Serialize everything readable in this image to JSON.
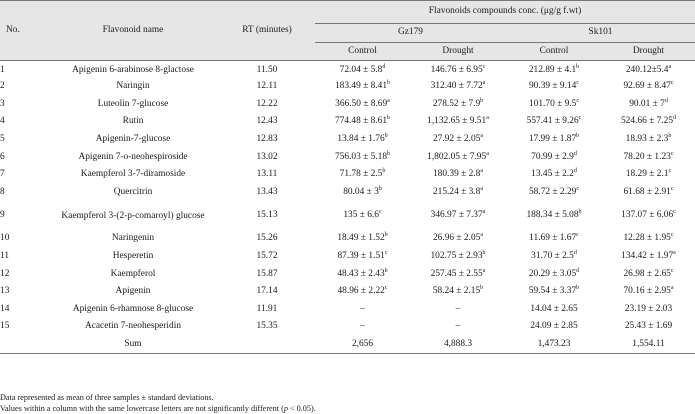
{
  "header": {
    "no": "No.",
    "name": "Flavonoid name",
    "rt": "RT (minutes)",
    "group": "Flavonoids compounds conc. (μg/g f.wt)",
    "gz": "Gz179",
    "sk": "Sk101",
    "control": "Control",
    "drought": "Drought"
  },
  "rows": [
    {
      "no": "1",
      "name": "Apigenin 6-arabinose 8-glactose",
      "rt": "11.50",
      "gz_c": "72.04 ± 5.8",
      "gz_c_s": "d",
      "gz_d": "146.76 ± 6.95",
      "gz_d_s": "c",
      "sk_c": "212.89 ± 4.1",
      "sk_c_s": "b",
      "sk_d": "240.12±5.4",
      "sk_d_s": "a"
    },
    {
      "no": "2",
      "name": "Naringin",
      "rt": "12.11",
      "gz_c": "183.49 ± 8.41",
      "gz_c_s": "b",
      "gz_d": "312.40 ± 7.72",
      "gz_d_s": "a",
      "sk_c": "90.39 ± 9.14",
      "sk_c_s": "c",
      "sk_d": "92.69 ± 8.47",
      "sk_d_s": "c"
    },
    {
      "no": "3",
      "name": "Luteolin 7-glucose",
      "rt": "12.22",
      "gz_c": "366.50 ± 8.69",
      "gz_c_s": "a",
      "gz_d": "278.52 ± 7.9",
      "gz_d_s": "b",
      "sk_c": "101.70 ± 9.5",
      "sk_c_s": "c",
      "sk_d": "90.01 ± 7",
      "sk_d_s": "d"
    },
    {
      "no": "4",
      "name": "Rutin",
      "rt": "12.43",
      "gz_c": "774.48 ± 8.61",
      "gz_c_s": "b",
      "gz_d": "1,132.65 ± 9.51",
      "gz_d_s": "a",
      "sk_c": "557.41 ± 9.26",
      "sk_c_s": "c",
      "sk_d": "524.66 ± 7.25",
      "sk_d_s": "d"
    },
    {
      "no": "5",
      "name": "Apigenin-7-glucose",
      "rt": "12.83",
      "gz_c": "13.84 ± 1.76",
      "gz_c_s": "b",
      "gz_d": "27.92 ± 2.05",
      "gz_d_s": "a",
      "sk_c": "17.99 ± 1.87",
      "sk_c_s": "b",
      "sk_d": "18.93 ± 2.3",
      "sk_d_s": "b"
    },
    {
      "no": "6",
      "name": "Apigenin 7-o-neohespiroside",
      "rt": "13.02",
      "gz_c": "756.03 ± 5.18",
      "gz_c_s": "b",
      "gz_d": "1,802.05 ± 7.95",
      "gz_d_s": "a",
      "sk_c": "70.99 ± 2.9",
      "sk_c_s": "d",
      "sk_d": "78.20 ± 1.23",
      "sk_d_s": "c"
    },
    {
      "no": "7",
      "name": "Kaempferol 3-7-diramoside",
      "rt": "13.11",
      "gz_c": "71.78 ± 2.5",
      "gz_c_s": "b",
      "gz_d": "180.39 ± 2.8",
      "gz_d_s": "a",
      "sk_c": "13.45 ± 2.2",
      "sk_c_s": "d",
      "sk_d": "18.29 ± 2.1",
      "sk_d_s": "c"
    },
    {
      "no": "8",
      "name": "Quercitrin",
      "rt": "13.43",
      "gz_c": "80.04 ± 3",
      "gz_c_s": "b",
      "gz_d": "215.24 ± 3.8",
      "gz_d_s": "a",
      "sk_c": "58.72 ± 2.29",
      "sk_c_s": "c",
      "sk_d": "61.68 ± 2.91",
      "sk_d_s": "c"
    },
    {
      "no": "9",
      "name": "Kaempferol 3-(2-p-comaroyl) glucose",
      "rt": "15.13",
      "gz_c": "135 ± 6.6",
      "gz_c_s": "c",
      "gz_d": "346.97 ± 7.37",
      "gz_d_s": "a",
      "sk_c": "188.34 ± 5.08",
      "sk_c_s": "b",
      "sk_d": "137.07 ± 6.06",
      "sk_d_s": "c",
      "tall": true
    },
    {
      "no": "10",
      "name": "Naringenin",
      "rt": "15.26",
      "gz_c": "18.49 ± 1.52",
      "gz_c_s": "b",
      "gz_d": "26.96 ± 2.05",
      "gz_d_s": "a",
      "sk_c": "11.69 ± 1.67",
      "sk_c_s": "c",
      "sk_d": "12.28 ± 1.95",
      "sk_d_s": "c"
    },
    {
      "no": "11",
      "name": "Hesperetin",
      "rt": "15.72",
      "gz_c": "87.39 ± 1.51",
      "gz_c_s": "c",
      "gz_d": "102.75 ± 2.93",
      "gz_d_s": "b",
      "sk_c": "31.70 ± 2.5",
      "sk_c_s": "d",
      "sk_d": "134.42 ± 1.97",
      "sk_d_s": "a"
    },
    {
      "no": "12",
      "name": "Kaempferol",
      "rt": "15.87",
      "gz_c": "48.43 ± 2.43",
      "gz_c_s": "b",
      "gz_d": "257.45 ± 2.55",
      "gz_d_s": "a",
      "sk_c": "20.29 ± 3.05",
      "sk_c_s": "d",
      "sk_d": "26.98 ± 2.65",
      "sk_d_s": "c"
    },
    {
      "no": "13",
      "name": "Apigenin",
      "rt": "17.14",
      "gz_c": "48.96 ± 2.22",
      "gz_c_s": "c",
      "gz_d": "58.24 ± 2.15",
      "gz_d_s": "b",
      "sk_c": "59.54 ± 3.37",
      "sk_c_s": "b",
      "sk_d": "70.16 ± 2.95",
      "sk_d_s": "a"
    },
    {
      "no": "14",
      "name": "Apigenin 6-rhamnose 8-glucose",
      "rt": "11.91",
      "gz_c": "–",
      "gz_c_s": "",
      "gz_d": "–",
      "gz_d_s": "",
      "sk_c": "14.04 ± 2.65",
      "sk_c_s": "",
      "sk_d": "23.19 ± 2.03",
      "sk_d_s": ""
    },
    {
      "no": "15",
      "name": "Acacetin 7-neohesperidin",
      "rt": "15.35",
      "gz_c": "–",
      "gz_c_s": "",
      "gz_d": "–",
      "gz_d_s": "",
      "sk_c": "24.09 ± 2.85",
      "sk_c_s": "",
      "sk_d": "25.43 ± 1.69",
      "sk_d_s": ""
    }
  ],
  "sum": {
    "label": "Sum",
    "gz_c": "2,656",
    "gz_d": "4,888.3",
    "sk_c": "1,473.23",
    "sk_d": "1,554.11"
  },
  "notes": {
    "line1": "Data represented as mean of three samples ± standard deviations.",
    "line2_a": "Values within a column with the same lowercase letters are not significantly different (",
    "line2_p": "p",
    "line2_b": " < 0.05)."
  }
}
